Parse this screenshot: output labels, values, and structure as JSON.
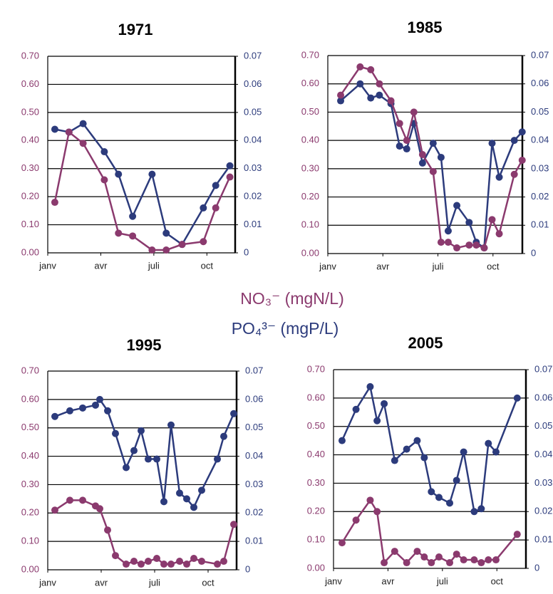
{
  "chart_data": [
    {
      "type": "line",
      "title": "1971",
      "grid": true,
      "x": [
        0.4,
        1.2,
        2.0,
        3.2,
        4.0,
        4.8,
        5.9,
        6.7,
        7.6,
        8.8,
        9.5,
        10.3
      ],
      "xlim": [
        0,
        10.6
      ],
      "xticks": [
        {
          "value": 0,
          "label": "janv"
        },
        {
          "value": 3,
          "label": "avr"
        },
        {
          "value": 6,
          "label": "juli"
        },
        {
          "value": 9,
          "label": "oct"
        }
      ],
      "ylim": [
        0,
        0.7
      ],
      "yticks": [
        {
          "value": 0,
          "label": "0.00"
        },
        {
          "value": 0.1,
          "label": "0.10"
        },
        {
          "value": 0.2,
          "label": "0.20"
        },
        {
          "value": 0.3,
          "label": "0.30"
        },
        {
          "value": 0.4,
          "label": "0.40"
        },
        {
          "value": 0.5,
          "label": "0.50"
        },
        {
          "value": 0.6,
          "label": "0.60"
        },
        {
          "value": 0.7,
          "label": "0.70"
        }
      ],
      "y2lim": [
        0,
        0.07
      ],
      "y2ticks": [
        0,
        0.01,
        0.02,
        0.03,
        0.04,
        0.05,
        0.06,
        0.07
      ],
      "series": [
        {
          "name": "NO₃⁻ (mgN/L)",
          "color": "#8b3a6e",
          "values": [
            0.18,
            0.43,
            0.39,
            0.26,
            0.07,
            0.06,
            0.01,
            0.01,
            0.03,
            0.04,
            0.16,
            0.27
          ]
        },
        {
          "name": "PO₄³⁻ (mgP/L)",
          "color": "#2c3b7c",
          "axis": "y2",
          "values": [
            0.044,
            0.043,
            0.046,
            0.036,
            0.028,
            0.013,
            0.028,
            0.007,
            0.003,
            0.016,
            0.024,
            0.031
          ]
        }
      ]
    },
    {
      "type": "line",
      "title": "1985",
      "grid": true,
      "x": [
        0.7,
        1.76,
        2.34,
        2.81,
        3.44,
        3.91,
        4.3,
        4.69,
        5.16,
        5.74,
        6.17,
        6.56,
        7.03,
        7.7,
        8.09,
        8.52,
        8.95,
        9.34,
        10.16,
        10.59
      ],
      "xlim": [
        0,
        10.6
      ],
      "xticks": [
        {
          "value": 0,
          "label": "janv"
        },
        {
          "value": 3,
          "label": "avr"
        },
        {
          "value": 6,
          "label": "juli"
        },
        {
          "value": 9,
          "label": "oct"
        }
      ],
      "ylim": [
        0,
        0.7
      ],
      "yticks": [
        {
          "value": 0,
          "label": "0.00"
        },
        {
          "value": 0.1,
          "label": "0.10"
        },
        {
          "value": 0.2,
          "label": "0.20"
        },
        {
          "value": 0.3,
          "label": "0.30"
        },
        {
          "value": 0.4,
          "label": "0.40"
        },
        {
          "value": 0.5,
          "label": "0.50"
        },
        {
          "value": 0.6,
          "label": "0.60"
        },
        {
          "value": 0.7,
          "label": "0.70"
        }
      ],
      "y2lim": [
        0,
        0.07
      ],
      "y2ticks": [
        0,
        0.01,
        0.02,
        0.03,
        0.04,
        0.05,
        0.06,
        0.07
      ],
      "series": [
        {
          "color": "#8b3a6e",
          "values": [
            0.56,
            0.66,
            0.65,
            0.6,
            0.54,
            0.46,
            0.4,
            0.5,
            0.35,
            0.29,
            0.04,
            0.04,
            0.02,
            0.03,
            0.03,
            0.02,
            0.12,
            0.07,
            0.28,
            0.33
          ]
        },
        {
          "color": "#2c3b7c",
          "axis": "y2",
          "values": [
            0.054,
            0.06,
            0.055,
            0.056,
            0.053,
            0.038,
            0.037,
            0.046,
            0.032,
            0.039,
            0.034,
            0.008,
            0.017,
            0.011,
            0.004,
            0.002,
            0.039,
            0.027,
            0.04,
            0.043
          ]
        }
      ]
    },
    {
      "type": "line",
      "title": "1995",
      "grid": true,
      "x": [
        0.4,
        1.24,
        1.96,
        2.68,
        2.92,
        3.36,
        3.8,
        4.4,
        4.84,
        5.24,
        5.64,
        6.12,
        6.52,
        6.92,
        7.4,
        7.8,
        8.2,
        8.64,
        9.52,
        9.88,
        10.44
      ],
      "xlim": [
        0,
        10.6
      ],
      "xticks": [
        {
          "value": 0,
          "label": "janv"
        },
        {
          "value": 3,
          "label": "avr"
        },
        {
          "value": 6,
          "label": "juli"
        },
        {
          "value": 9,
          "label": "oct"
        }
      ],
      "ylim": [
        0,
        0.7
      ],
      "yticks": [
        {
          "value": 0,
          "label": "0.00"
        },
        {
          "value": 0.1,
          "label": "0.10"
        },
        {
          "value": 0.2,
          "label": "0.20"
        },
        {
          "value": 0.3,
          "label": "0.30"
        },
        {
          "value": 0.4,
          "label": "0.40"
        },
        {
          "value": 0.5,
          "label": "0.50"
        },
        {
          "value": 0.6,
          "label": "0.60"
        },
        {
          "value": 0.7,
          "label": "0.70"
        }
      ],
      "y2lim": [
        0,
        0.07
      ],
      "y2ticks": [
        0,
        0.01,
        0.02,
        0.03,
        0.04,
        0.05,
        0.06,
        0.07
      ],
      "series": [
        {
          "color": "#8b3a6e",
          "values": [
            0.21,
            0.245,
            0.245,
            0.225,
            0.215,
            0.14,
            0.05,
            0.02,
            0.03,
            0.02,
            0.03,
            0.04,
            0.02,
            0.02,
            0.03,
            0.02,
            0.04,
            0.03,
            0.02,
            0.03,
            0.16
          ]
        },
        {
          "color": "#2c3b7c",
          "axis": "y2",
          "values": [
            0.054,
            0.056,
            0.057,
            0.058,
            0.06,
            0.056,
            0.048,
            0.036,
            0.042,
            0.049,
            0.039,
            0.039,
            0.024,
            0.051,
            0.027,
            0.025,
            0.022,
            0.028,
            0.039,
            0.047,
            0.055
          ]
        }
      ]
    },
    {
      "type": "line",
      "title": "2005",
      "grid": true,
      "x": [
        0.47,
        1.24,
        2.02,
        2.4,
        2.79,
        3.37,
        4.03,
        4.61,
        5.0,
        5.39,
        5.81,
        6.4,
        6.78,
        7.17,
        7.75,
        8.14,
        8.53,
        8.95,
        10.12
      ],
      "xlim": [
        0,
        10.6
      ],
      "xticks": [
        {
          "value": 0,
          "label": "janv"
        },
        {
          "value": 3,
          "label": "avr"
        },
        {
          "value": 6,
          "label": "juli"
        },
        {
          "value": 9,
          "label": "oct"
        }
      ],
      "ylim": [
        0,
        0.7
      ],
      "yticks": [
        {
          "value": 0,
          "label": "0.00"
        },
        {
          "value": 0.1,
          "label": "0.10"
        },
        {
          "value": 0.2,
          "label": "0.20"
        },
        {
          "value": 0.3,
          "label": "0.30"
        },
        {
          "value": 0.4,
          "label": "0.40"
        },
        {
          "value": 0.5,
          "label": "0.50"
        },
        {
          "value": 0.6,
          "label": "0.60"
        },
        {
          "value": 0.7,
          "label": "0.70"
        }
      ],
      "y2lim": [
        0,
        0.07
      ],
      "y2ticks": [
        0,
        0.01,
        0.02,
        0.03,
        0.04,
        0.05,
        0.06,
        0.07
      ],
      "series": [
        {
          "color": "#8b3a6e",
          "values": [
            0.09,
            0.17,
            0.24,
            0.2,
            0.02,
            0.06,
            0.02,
            0.06,
            0.04,
            0.02,
            0.04,
            0.02,
            0.05,
            0.03,
            0.03,
            0.02,
            0.03,
            0.03,
            0.12
          ]
        },
        {
          "color": "#2c3b7c",
          "axis": "y2",
          "values": [
            0.045,
            0.056,
            0.064,
            0.052,
            0.058,
            0.038,
            0.042,
            0.045,
            0.039,
            0.027,
            0.025,
            0.023,
            0.031,
            0.041,
            0.02,
            0.021,
            0.044,
            0.041,
            0.06
          ]
        }
      ]
    }
  ]
}
